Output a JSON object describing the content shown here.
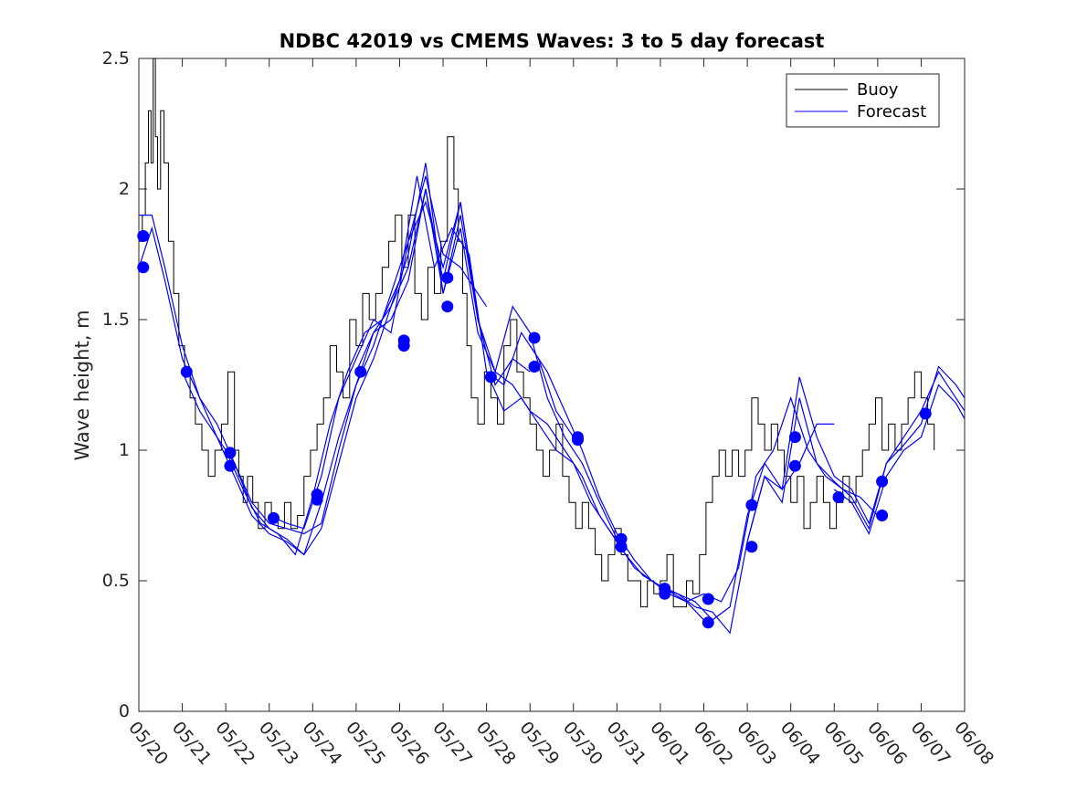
{
  "chart_data": {
    "type": "line",
    "title": "NDBC 42019 vs CMEMS Waves: 3 to 5 day forecast",
    "xlabel": "",
    "ylabel": "Wave height, m",
    "xlim": [
      0,
      19
    ],
    "ylim": [
      0,
      2.5
    ],
    "yticks": [
      0,
      0.5,
      1,
      1.5,
      2,
      2.5
    ],
    "ytick_labels": [
      "0",
      "0.5",
      "1",
      "1.5",
      "2",
      "2.5"
    ],
    "xtick_labels": [
      "05/20",
      "05/21",
      "05/22",
      "05/23",
      "05/24",
      "05/25",
      "05/26",
      "05/27",
      "05/28",
      "05/29",
      "05/30",
      "05/31",
      "06/01",
      "06/02",
      "06/03",
      "06/04",
      "06/05",
      "06/06",
      "06/07",
      "06/08"
    ],
    "grid": false,
    "legend": {
      "position": "top-right",
      "entries": [
        {
          "label": "Buoy",
          "color": "#000000"
        },
        {
          "label": "Forecast",
          "color": "#0000ff"
        }
      ]
    },
    "buoy": {
      "name": "Buoy",
      "color": "#000000",
      "x": [
        0,
        0.08,
        0.15,
        0.22,
        0.28,
        0.33,
        0.38,
        0.43,
        0.5,
        0.58,
        0.68,
        0.8,
        0.92,
        1.05,
        1.18,
        1.3,
        1.45,
        1.6,
        1.75,
        1.9,
        2.05,
        2.2,
        2.3,
        2.4,
        2.5,
        2.62,
        2.75,
        2.9,
        3.05,
        3.2,
        3.35,
        3.5,
        3.65,
        3.8,
        3.95,
        4.1,
        4.25,
        4.4,
        4.55,
        4.7,
        4.85,
        5.0,
        5.15,
        5.3,
        5.45,
        5.6,
        5.75,
        5.9,
        6.05,
        6.2,
        6.35,
        6.5,
        6.65,
        6.8,
        6.95,
        7.1,
        7.25,
        7.35,
        7.45,
        7.55,
        7.65,
        7.8,
        7.95,
        8.1,
        8.25,
        8.4,
        8.55,
        8.7,
        8.85,
        9.0,
        9.15,
        9.3,
        9.45,
        9.6,
        9.75,
        9.9,
        10.05,
        10.2,
        10.35,
        10.5,
        10.65,
        10.8,
        10.95,
        11.1,
        11.25,
        11.4,
        11.55,
        11.7,
        11.85,
        12.0,
        12.15,
        12.3,
        12.45,
        12.6,
        12.75,
        12.9,
        13.05,
        13.2,
        13.35,
        13.5,
        13.65,
        13.8,
        13.95,
        14.1,
        14.25,
        14.4,
        14.55,
        14.7,
        14.85,
        15.0,
        15.15,
        15.3,
        15.45,
        15.6,
        15.75,
        15.9,
        16.05,
        16.2,
        16.35,
        16.5,
        16.65,
        16.8,
        16.95,
        17.1,
        17.25,
        17.4,
        17.55,
        17.7,
        17.85,
        18.0,
        18.15,
        18.3
      ],
      "values": [
        1.8,
        1.9,
        2.1,
        2.3,
        2.1,
        2.5,
        2.2,
        2.0,
        2.3,
        2.1,
        1.8,
        1.6,
        1.4,
        1.3,
        1.2,
        1.1,
        1.0,
        0.9,
        1.0,
        1.1,
        1.3,
        1.0,
        0.9,
        0.8,
        0.9,
        0.8,
        0.7,
        0.8,
        0.75,
        0.7,
        0.8,
        0.7,
        0.75,
        0.9,
        1.0,
        1.1,
        1.2,
        1.4,
        1.3,
        1.2,
        1.5,
        1.4,
        1.6,
        1.5,
        1.6,
        1.7,
        1.8,
        1.9,
        1.7,
        1.9,
        1.6,
        1.5,
        1.7,
        1.6,
        1.8,
        2.2,
        2.0,
        1.8,
        1.6,
        1.4,
        1.2,
        1.1,
        1.3,
        1.2,
        1.1,
        1.4,
        1.5,
        1.3,
        1.2,
        1.1,
        1.0,
        0.9,
        1.0,
        1.1,
        0.9,
        0.8,
        0.7,
        0.8,
        0.7,
        0.6,
        0.5,
        0.6,
        0.7,
        0.6,
        0.5,
        0.5,
        0.4,
        0.5,
        0.45,
        0.5,
        0.6,
        0.4,
        0.4,
        0.5,
        0.45,
        0.6,
        0.8,
        0.9,
        1.0,
        0.9,
        1.0,
        0.9,
        1.0,
        1.2,
        1.1,
        1.0,
        1.1,
        1.0,
        0.9,
        0.8,
        0.9,
        0.7,
        0.8,
        0.9,
        0.8,
        0.7,
        0.8,
        0.9,
        0.8,
        0.9,
        1.0,
        1.1,
        1.2,
        1.0,
        1.1,
        1.0,
        1.1,
        1.2,
        1.3,
        1.2,
        1.1,
        1.0
      ],
      "spikes": true
    },
    "forecast": {
      "name": "Forecast",
      "color": "#0000ff",
      "runs": [
        {
          "x": [
            0.0,
            0.3,
            0.6,
            1.0,
            1.4,
            1.8,
            2.2,
            2.6,
            3.0,
            3.4,
            3.8,
            4.2,
            4.6,
            5.0,
            5.4,
            5.8,
            6.2,
            6.6,
            7.0,
            7.4,
            7.8,
            8.0
          ],
          "values": [
            1.9,
            1.9,
            1.7,
            1.4,
            1.2,
            1.1,
            0.95,
            0.8,
            0.72,
            0.7,
            0.68,
            0.72,
            1.0,
            1.25,
            1.4,
            1.6,
            1.8,
            2.05,
            1.75,
            1.7,
            1.6,
            1.55
          ]
        },
        {
          "x": [
            0.0,
            0.3,
            0.6,
            1.0,
            1.4,
            1.8,
            2.2,
            2.6,
            3.0,
            3.4,
            3.8,
            4.2,
            4.6,
            5.0,
            5.4,
            5.8,
            6.2,
            6.6,
            7.0,
            7.4,
            7.8,
            8.0
          ],
          "values": [
            1.7,
            1.85,
            1.65,
            1.35,
            1.2,
            1.05,
            0.9,
            0.75,
            0.68,
            0.65,
            0.6,
            0.7,
            0.95,
            1.2,
            1.35,
            1.55,
            1.7,
            2.0,
            1.65,
            1.95,
            1.5,
            1.4
          ]
        },
        {
          "x": [
            1.0,
            1.4,
            1.8,
            2.2,
            2.6,
            3.0,
            3.4,
            3.8,
            4.2,
            4.6,
            5.0,
            5.4,
            5.8,
            6.2,
            6.6,
            7.0,
            7.4,
            7.8,
            8.2,
            8.6,
            9.0
          ],
          "values": [
            1.3,
            1.15,
            1.05,
            0.95,
            0.78,
            0.7,
            0.66,
            0.6,
            0.8,
            1.05,
            1.25,
            1.45,
            1.55,
            1.75,
            2.1,
            1.6,
            1.9,
            1.5,
            1.25,
            1.35,
            1.3
          ]
        },
        {
          "x": [
            2.0,
            2.4,
            2.8,
            3.2,
            3.6,
            4.0,
            4.4,
            4.8,
            5.2,
            5.6,
            6.0,
            6.4,
            6.8,
            7.2,
            7.6,
            8.0,
            8.4,
            8.8,
            9.2,
            9.6,
            10.0
          ],
          "values": [
            1.0,
            0.85,
            0.72,
            0.68,
            0.6,
            0.82,
            1.1,
            1.3,
            1.45,
            1.5,
            1.65,
            2.05,
            1.7,
            1.85,
            1.75,
            1.3,
            1.25,
            1.45,
            1.35,
            1.15,
            1.05
          ]
        },
        {
          "x": [
            3.0,
            3.4,
            3.8,
            4.2,
            4.6,
            5.0,
            5.4,
            5.8,
            6.2,
            6.6,
            7.0,
            7.4,
            7.8,
            8.2,
            8.6,
            9.0,
            9.4,
            9.8,
            10.2,
            10.6,
            11.0
          ],
          "values": [
            0.75,
            0.72,
            0.7,
            0.9,
            1.2,
            1.35,
            1.5,
            1.45,
            1.8,
            1.95,
            1.7,
            1.95,
            1.5,
            1.3,
            1.55,
            1.45,
            1.2,
            1.05,
            0.95,
            0.8,
            0.66
          ]
        },
        {
          "x": [
            5.0,
            5.4,
            5.8,
            6.2,
            6.6,
            7.0,
            7.4,
            7.8,
            8.2,
            8.6,
            9.0,
            9.4,
            9.8,
            10.2,
            10.6,
            11.0,
            11.4,
            11.8,
            12.2,
            12.6,
            13.0
          ],
          "values": [
            1.3,
            1.45,
            1.5,
            1.65,
            2.0,
            1.6,
            1.85,
            1.45,
            1.3,
            1.25,
            1.15,
            1.1,
            1.0,
            0.9,
            0.75,
            0.65,
            0.55,
            0.5,
            0.45,
            0.42,
            0.35
          ]
        },
        {
          "x": [
            8.0,
            8.4,
            8.8,
            9.2,
            9.6,
            10.0,
            10.4,
            10.8,
            11.2,
            11.6,
            12.0,
            12.4,
            12.8,
            13.2,
            13.6,
            14.0,
            14.4,
            14.8,
            15.2,
            15.6,
            16.0
          ],
          "values": [
            1.3,
            1.15,
            1.2,
            1.1,
            1.0,
            0.95,
            0.8,
            0.7,
            0.6,
            0.52,
            0.48,
            0.45,
            0.4,
            0.38,
            0.3,
            0.65,
            0.9,
            0.85,
            0.95,
            1.1,
            1.1
          ]
        },
        {
          "x": [
            9.0,
            9.4,
            9.8,
            10.2,
            10.6,
            11.0,
            11.4,
            11.8,
            12.2,
            12.6,
            13.0,
            13.4,
            13.8,
            14.2,
            14.6,
            15.0,
            15.4,
            15.8,
            16.2,
            16.6,
            17.0
          ],
          "values": [
            1.4,
            1.3,
            1.15,
            1.0,
            0.82,
            0.68,
            0.58,
            0.5,
            0.46,
            0.42,
            0.45,
            0.42,
            0.55,
            0.9,
            1.0,
            1.2,
            1.0,
            0.9,
            0.85,
            0.82,
            0.75
          ]
        },
        {
          "x": [
            12.0,
            12.4,
            12.8,
            13.2,
            13.6,
            14.0,
            14.4,
            14.8,
            15.2,
            15.6,
            16.0,
            16.4,
            16.8,
            17.2,
            17.6,
            18.0,
            18.4,
            18.8,
            19.0
          ],
          "values": [
            0.47,
            0.45,
            0.42,
            0.35,
            0.4,
            0.75,
            0.95,
            0.85,
            1.28,
            1.05,
            0.9,
            0.85,
            0.72,
            0.95,
            1.05,
            1.15,
            1.3,
            1.2,
            1.15
          ]
        },
        {
          "x": [
            14.0,
            14.4,
            14.8,
            15.2,
            15.6,
            16.0,
            16.4,
            16.8,
            17.2,
            17.6,
            18.0,
            18.4,
            18.8,
            19.0
          ],
          "values": [
            0.65,
            0.9,
            0.8,
            1.2,
            0.95,
            0.88,
            0.82,
            0.7,
            0.95,
            1.02,
            1.1,
            1.32,
            1.25,
            1.2
          ]
        },
        {
          "x": [
            16.0,
            16.4,
            16.8,
            17.2,
            17.6,
            18.0,
            18.4,
            18.8,
            19.0
          ],
          "values": [
            0.85,
            0.8,
            0.68,
            0.9,
            1.0,
            1.05,
            1.25,
            1.18,
            1.12
          ]
        }
      ],
      "markers": [
        [
          0.1,
          1.82
        ],
        [
          0.1,
          1.7
        ],
        [
          1.1,
          1.3
        ],
        [
          2.1,
          0.99
        ],
        [
          2.1,
          0.94
        ],
        [
          3.1,
          0.74
        ],
        [
          4.1,
          0.83
        ],
        [
          4.1,
          0.81
        ],
        [
          5.1,
          1.3
        ],
        [
          6.1,
          1.42
        ],
        [
          6.1,
          1.4
        ],
        [
          7.1,
          1.66
        ],
        [
          7.1,
          1.55
        ],
        [
          8.1,
          1.28
        ],
        [
          9.1,
          1.43
        ],
        [
          9.1,
          1.32
        ],
        [
          10.1,
          1.05
        ],
        [
          10.1,
          1.04
        ],
        [
          11.1,
          0.66
        ],
        [
          11.1,
          0.63
        ],
        [
          12.1,
          0.47
        ],
        [
          12.1,
          0.45
        ],
        [
          13.1,
          0.43
        ],
        [
          13.1,
          0.34
        ],
        [
          14.1,
          0.79
        ],
        [
          14.1,
          0.63
        ],
        [
          15.1,
          1.05
        ],
        [
          15.1,
          0.94
        ],
        [
          16.1,
          0.82
        ],
        [
          17.1,
          0.88
        ],
        [
          17.1,
          0.75
        ],
        [
          18.1,
          1.14
        ]
      ]
    }
  }
}
